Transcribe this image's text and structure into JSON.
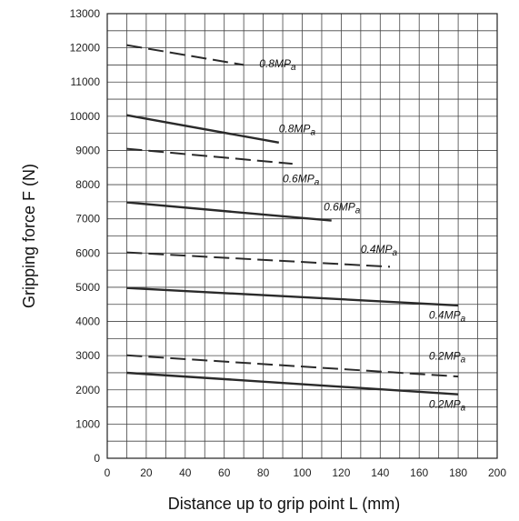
{
  "chart_data": {
    "type": "line",
    "title": "",
    "xlabel": "Distance up to grip point L (mm)",
    "ylabel": "Gripping force F (N)",
    "xlim": [
      0,
      200
    ],
    "ylim": [
      0,
      13000
    ],
    "x_ticks": [
      "0",
      "20",
      "40",
      "60",
      "80",
      "100",
      "120",
      "140",
      "160",
      "180",
      "200"
    ],
    "y_ticks": [
      "0",
      "1000",
      "2000",
      "3000",
      "4000",
      "5000",
      "6000",
      "7000",
      "8000",
      "9000",
      "10000",
      "11000",
      "12000",
      "13000"
    ],
    "grid": true,
    "series": [
      {
        "style": "dashed",
        "points": [
          [
            10,
            12080
          ],
          [
            70,
            11500
          ]
        ],
        "label": "0.8MPa",
        "label_main": "0.8MP",
        "label_sub": "a",
        "label_at": [
          78,
          11430
        ]
      },
      {
        "style": "solid",
        "points": [
          [
            10,
            10030
          ],
          [
            88,
            9230
          ]
        ],
        "label": "0.8MPa",
        "label_main": "0.8MP",
        "label_sub": "a",
        "label_at": [
          88,
          9530
        ]
      },
      {
        "style": "dashed",
        "points": [
          [
            10,
            9050
          ],
          [
            95,
            8610
          ]
        ],
        "label": "0.6MPa",
        "label_main": "0.6MP",
        "label_sub": "a",
        "label_at": [
          90,
          8070
        ]
      },
      {
        "style": "solid",
        "points": [
          [
            10,
            7480
          ],
          [
            115,
            6950
          ]
        ],
        "label": "0.6MPa",
        "label_main": "0.6MP",
        "label_sub": "a",
        "label_at": [
          111,
          7240
        ]
      },
      {
        "style": "dashed",
        "points": [
          [
            10,
            6020
          ],
          [
            145,
            5600
          ]
        ],
        "label": "0.4MPa",
        "label_main": "0.4MP",
        "label_sub": "a",
        "label_at": [
          130,
          6010
        ]
      },
      {
        "style": "solid",
        "points": [
          [
            10,
            4980
          ],
          [
            180,
            4470
          ]
        ],
        "label": "0.4MPa",
        "label_main": "0.4MP",
        "label_sub": "a",
        "label_at": [
          165,
          4080
        ]
      },
      {
        "style": "dashed",
        "points": [
          [
            10,
            3010
          ],
          [
            180,
            2390
          ]
        ],
        "label": "0.2MPa",
        "label_main": "0.2MP",
        "label_sub": "a",
        "label_at": [
          165,
          2890
        ]
      },
      {
        "style": "solid",
        "points": [
          [
            10,
            2500
          ],
          [
            180,
            1870
          ]
        ],
        "label": "0.2MPa",
        "label_main": "0.2MP",
        "label_sub": "a",
        "label_at": [
          165,
          1470
        ]
      }
    ]
  }
}
